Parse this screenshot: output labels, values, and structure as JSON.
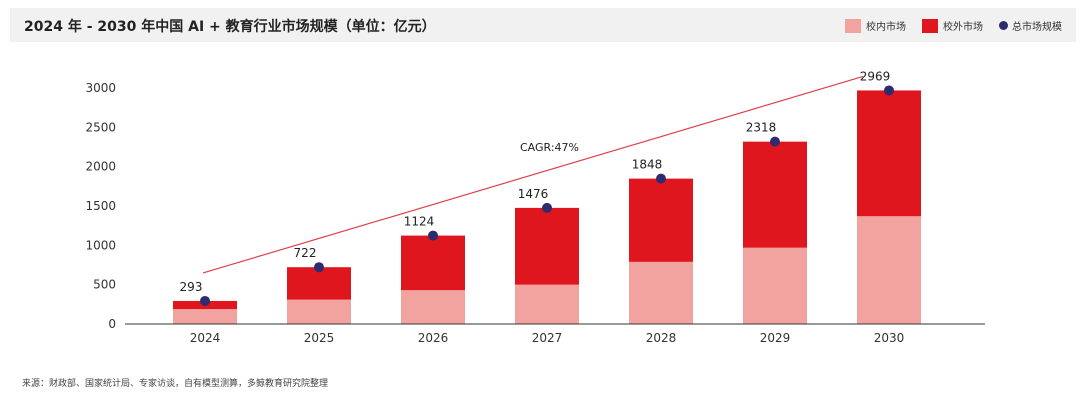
{
  "title": "2024 年 - 2030 年中国 AI + 教育行业市场规模（单位：亿元）",
  "source": "来源：财政部、国家统计局、专家访谈，自有模型测算，多鲸教育研究院整理",
  "colors": {
    "in_school": "#f2a3a0",
    "off_school": "#e0161f",
    "total_marker": "#2e2b6e",
    "trend_line": "#e0404a"
  },
  "chart_data": {
    "type": "bar",
    "stacked": true,
    "categories": [
      "2024",
      "2025",
      "2026",
      "2027",
      "2028",
      "2029",
      "2030"
    ],
    "series": [
      {
        "name": "校内市场",
        "values": [
          190,
          310,
          430,
          500,
          790,
          970,
          1370
        ]
      },
      {
        "name": "校外市场",
        "values": [
          103,
          412,
          694,
          976,
          1058,
          1348,
          1599
        ]
      }
    ],
    "totals_series_name": "总市场规模",
    "totals": [
      293,
      722,
      1124,
      1476,
      1848,
      2318,
      2969
    ],
    "annotation": "CAGR:47%",
    "ylim": [
      0,
      3000
    ],
    "yticks": [
      0,
      500,
      1000,
      1500,
      2000,
      2500,
      3000
    ],
    "legend_position": "top-right",
    "grid": false
  }
}
